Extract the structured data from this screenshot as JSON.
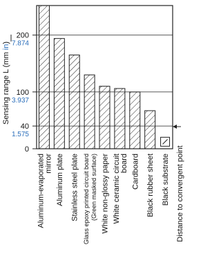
{
  "chart_data": {
    "type": "bar",
    "y_label_parts": [
      "Sensing range L (mm",
      "in",
      ")"
    ],
    "categories": [
      [
        "Aluminum-evaporated",
        "mirror"
      ],
      [
        "Aluminum plate"
      ],
      [
        "Stainless steel plate"
      ],
      [
        "Glass epoxy printed circuit board",
        "(Green masked surface)"
      ],
      [
        "White non-glossy paper"
      ],
      [
        "White ceramic circuit",
        "board"
      ],
      [
        "Cardboard"
      ],
      [
        "Black rubber sheet"
      ],
      [
        "Black substrate"
      ]
    ],
    "values": [
      252,
      194,
      165,
      130,
      110,
      106,
      100,
      67,
      30
    ],
    "ylim": [
      0,
      252
    ],
    "yticks": [
      0,
      40,
      100,
      200
    ],
    "yticks_inch": [
      null,
      "1.575",
      "3.937",
      "7.874"
    ],
    "annotation": "Distance to convergent point",
    "grid": true,
    "color": "#222"
  }
}
